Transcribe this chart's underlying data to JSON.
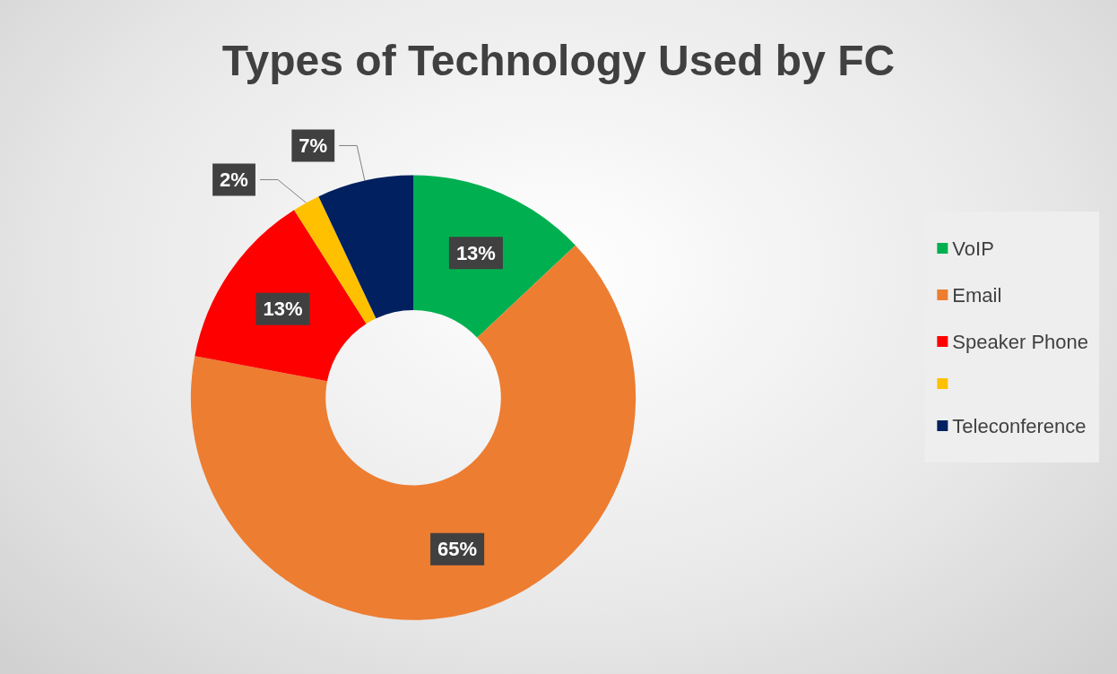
{
  "chart_data": {
    "type": "donut",
    "title": "Types of Technology Used by FC",
    "categories": [
      "VoIP",
      "Email",
      "Speaker Phone",
      null,
      "Teleconference"
    ],
    "values": [
      13,
      65,
      13,
      2,
      7
    ],
    "colors": [
      "#00b050",
      "#ed7d31",
      "#ff0000",
      "#ffc000",
      "#002060"
    ],
    "value_labels": [
      "13%",
      "65%",
      "13%",
      "2%",
      "7%"
    ],
    "legend": "right"
  }
}
